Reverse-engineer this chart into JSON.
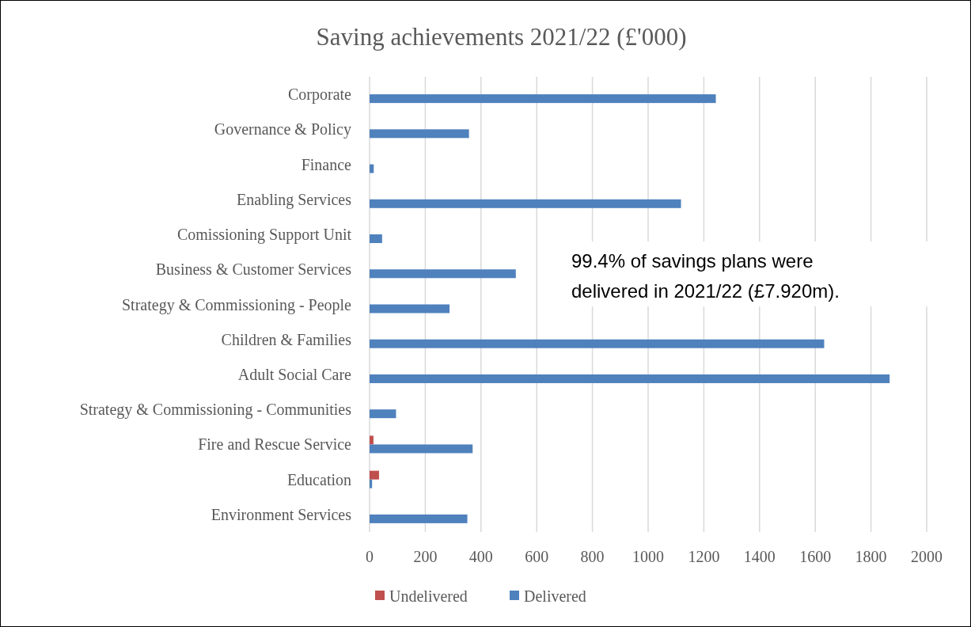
{
  "chart_data": {
    "type": "bar",
    "orientation": "horizontal",
    "title": "Saving achievements 2021/22 (£'000)",
    "categories": [
      "Corporate",
      "Governance & Policy",
      "Finance",
      "Enabling Services",
      "Comissioning Support Unit",
      "Business & Customer Services",
      "Strategy & Commissioning - People",
      "Children & Families",
      "Adult Social Care",
      "Strategy & Commissioning - Communities",
      "Fire and Rescue Service",
      "Education",
      "Environment Services"
    ],
    "series": [
      {
        "name": "Undelivered",
        "color": "#c0504d",
        "values": [
          null,
          null,
          null,
          null,
          null,
          null,
          null,
          null,
          null,
          null,
          14,
          34,
          null
        ]
      },
      {
        "name": "Delivered",
        "color": "#4f81bd",
        "values": [
          1243,
          357,
          15,
          1118,
          45,
          525,
          287,
          1632,
          1867,
          95,
          370,
          9,
          351
        ]
      }
    ],
    "xlim": [
      0,
      2000
    ],
    "xticks": [
      0,
      200,
      400,
      600,
      800,
      1000,
      1200,
      1400,
      1600,
      1800,
      2000
    ],
    "grid": "x",
    "legend": "bottom",
    "annotations": [
      "99.4% of savings plans were delivered in 2021/22 (£7.920m)."
    ]
  }
}
